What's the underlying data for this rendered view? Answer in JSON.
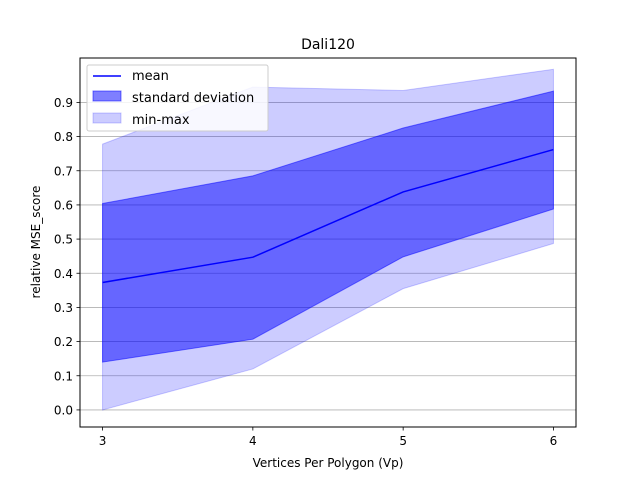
{
  "chart_data": {
    "type": "area",
    "title": "Dali120",
    "xlabel": "Vertices Per Polygon (Vp)",
    "ylabel": "relative MSE_score",
    "x": [
      3,
      4,
      5,
      6
    ],
    "xlim": [
      2.85,
      6.15
    ],
    "ylim": [
      -0.05,
      1.03
    ],
    "xticks": [
      "3",
      "4",
      "5",
      "6"
    ],
    "yticks": [
      "0.0",
      "0.1",
      "0.2",
      "0.3",
      "0.4",
      "0.5",
      "0.6",
      "0.7",
      "0.8",
      "0.9"
    ],
    "grid": "horizontal",
    "legend_position": "top-left",
    "series": [
      {
        "name": "mean",
        "kind": "line",
        "color": "#0000ff",
        "values": [
          0.373,
          0.447,
          0.638,
          0.762
        ]
      },
      {
        "name": "standard deviation",
        "kind": "band",
        "color": "#0000ff",
        "opacity": 0.5,
        "lower": [
          0.14,
          0.207,
          0.448,
          0.588
        ],
        "upper": [
          0.604,
          0.685,
          0.825,
          0.933
        ]
      },
      {
        "name": "min-max",
        "kind": "band",
        "color": "#0000ff",
        "opacity": 0.2,
        "lower": [
          0.0,
          0.12,
          0.355,
          0.487
        ],
        "upper": [
          0.778,
          0.945,
          0.935,
          0.997
        ]
      }
    ]
  }
}
